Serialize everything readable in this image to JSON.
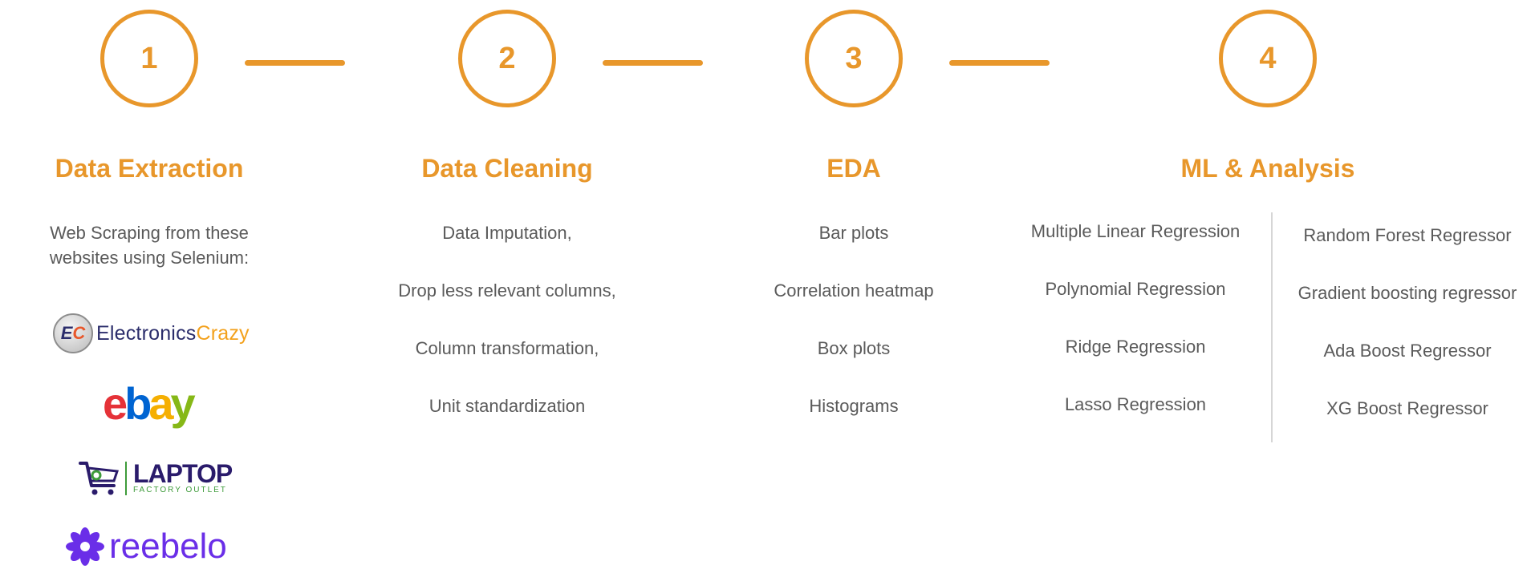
{
  "colors": {
    "accent": "#e8972b",
    "text": "#5a5a5a",
    "divider": "#d6d6d6"
  },
  "steps": [
    {
      "number": "1",
      "title": "Data Extraction"
    },
    {
      "number": "2",
      "title": "Data Cleaning"
    },
    {
      "number": "3",
      "title": "EDA"
    },
    {
      "number": "4",
      "title": "ML & Analysis"
    }
  ],
  "extraction": {
    "intro": "Web Scraping from these websites using Selenium:",
    "logos": {
      "electronics_crazy": {
        "badge_e": "E",
        "badge_c": "C",
        "word_a": "Electronics",
        "word_b": "Crazy"
      },
      "ebay": {
        "letters": [
          "e",
          "b",
          "a",
          "y"
        ],
        "colors": [
          "#e53238",
          "#0064d2",
          "#f5af02",
          "#86b817"
        ]
      },
      "laptop_factory_outlet": {
        "main": "LAPTOP",
        "sub": "FACTORY OUTLET"
      },
      "reebelo": {
        "name": "reebelo"
      }
    }
  },
  "cleaning": {
    "items": [
      "Data Imputation,",
      "Drop less relevant columns,",
      "Column transformation,",
      "Unit standardization"
    ]
  },
  "eda": {
    "items": [
      "Bar plots",
      "Correlation heatmap",
      "Box plots",
      "Histograms"
    ]
  },
  "ml": {
    "left": [
      "Multiple Linear Regression",
      "Polynomial Regression",
      "Ridge Regression",
      "Lasso Regression"
    ],
    "right": [
      "Random Forest Regressor",
      "Gradient boosting regressor",
      "Ada Boost Regressor",
      "XG Boost Regressor"
    ]
  }
}
